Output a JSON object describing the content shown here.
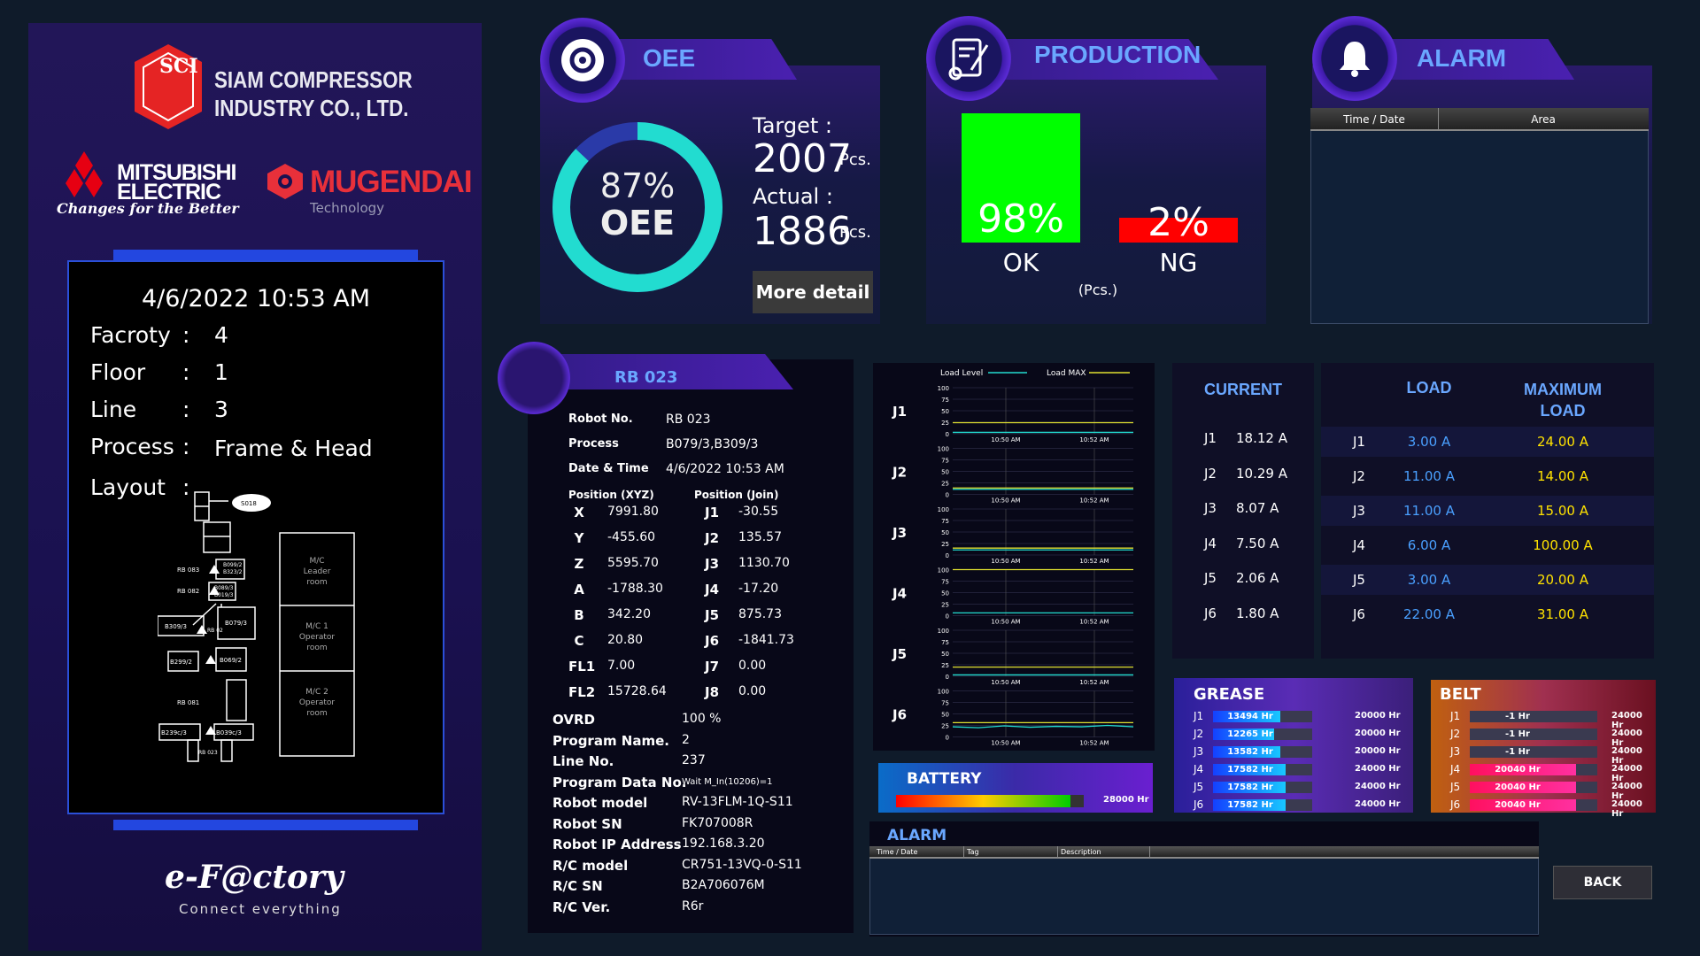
{
  "company": {
    "line1": "SIAM COMPRESSOR",
    "line2": "INDUSTRY CO., LTD.",
    "sci": "SCI",
    "mitsubishi1": "MITSUBISHI",
    "mitsubishi2": "ELECTRIC",
    "tagline": "Changes for the Better",
    "mugendai": "MUGENDAI",
    "mugendai_sub": "Technology",
    "efactory": "e-F@ctory",
    "connect": "Connect everything"
  },
  "info": {
    "datetime": "4/6/2022 10:53 AM",
    "rows": [
      {
        "label": "Facroty",
        "value": "4"
      },
      {
        "label": "Floor",
        "value": "1"
      },
      {
        "label": "Line",
        "value": "3"
      },
      {
        "label": "Process",
        "value": "Frame & Head"
      },
      {
        "label": "Layout",
        "value": ""
      }
    ],
    "colon": ":",
    "layout_labels": {
      "s018": "S018",
      "rb083": "RB 083",
      "rb082": "RB 082",
      "rb081": "RB 081",
      "b309": "B309/3",
      "b079": "B079/3",
      "b299": "B299/2",
      "b069": "B069/2",
      "b239": "B239c/3",
      "b039": "B039c/3",
      "b099": "B099/2",
      "b323": "B323/2",
      "b089": "B089/3",
      "b019": "B019/3",
      "rb02": "RB 02",
      "rb023": "RB 023",
      "mc1": "M/C",
      "mc1b": "Leader",
      "mc1c": "room",
      "mc2": "M/C 1",
      "mc2b": "Operator",
      "mc2c": "room",
      "mc3": "M/C 2",
      "mc3b": "Operator",
      "mc3c": "room"
    }
  },
  "oee": {
    "title": "OEE",
    "percent": "87%",
    "label": "OEE",
    "value": 0.87,
    "target_label": "Target :",
    "target": "2007",
    "actual_label": "Actual :",
    "actual": "1886",
    "unit": "Pcs.",
    "button": "More detail"
  },
  "production": {
    "title": "PRODUCTION",
    "ok_pct": "98%",
    "ok": "OK",
    "ng_pct": "2%",
    "ng": "NG",
    "unit": "(Pcs.)",
    "ok_value": 0.98,
    "ng_value": 0.02
  },
  "alarm_top": {
    "title": "ALARM",
    "cols": [
      "Time / Date",
      "Area"
    ]
  },
  "robot": {
    "title": "RB 023",
    "fields": [
      {
        "k": "Robot No.",
        "v": "RB 023"
      },
      {
        "k": "Process",
        "v": "B079/3,B309/3"
      },
      {
        "k": "Date & Time",
        "v": "4/6/2022 10:53 AM"
      }
    ],
    "pos_xyz_label": "Position (XYZ)",
    "pos_join_label": "Position (Join)",
    "xyz": [
      {
        "k": "X",
        "v": "7991.80"
      },
      {
        "k": "Y",
        "v": "-455.60"
      },
      {
        "k": "Z",
        "v": "5595.70"
      },
      {
        "k": "A",
        "v": "-1788.30"
      },
      {
        "k": "B",
        "v": "342.20"
      },
      {
        "k": "C",
        "v": "20.80"
      },
      {
        "k": "FL1",
        "v": "7.00"
      },
      {
        "k": "FL2",
        "v": "15728.64"
      }
    ],
    "join": [
      {
        "k": "J1",
        "v": "-30.55"
      },
      {
        "k": "J2",
        "v": "135.57"
      },
      {
        "k": "J3",
        "v": "1130.70"
      },
      {
        "k": "J4",
        "v": "-17.20"
      },
      {
        "k": "J5",
        "v": "875.73"
      },
      {
        "k": "J6",
        "v": "-1841.73"
      },
      {
        "k": "J7",
        "v": "0.00"
      },
      {
        "k": "J8",
        "v": "0.00"
      }
    ],
    "details": [
      {
        "k": "OVRD",
        "v": "100 %"
      },
      {
        "k": "Program Name.",
        "v": "2"
      },
      {
        "k": "Line No.",
        "v": "237"
      },
      {
        "k": "Program Data No.",
        "v": "Wait M_In(10206)=1"
      },
      {
        "k": "Robot model",
        "v": "RV-13FLM-1Q-S11"
      },
      {
        "k": "Robot SN",
        "v": "FK707008R"
      },
      {
        "k": "Robot IP Address",
        "v": "192.168.3.20"
      },
      {
        "k": "R/C model",
        "v": "CR751-13VQ-0-S11"
      },
      {
        "k": "R/C SN",
        "v": "B2A706076M"
      },
      {
        "k": "R/C Ver.",
        "v": "R6r"
      }
    ]
  },
  "chart_data": {
    "type": "line",
    "legend": [
      "Load Level",
      "Load MAX"
    ],
    "joints": [
      "J1",
      "J2",
      "J3",
      "J4",
      "J5",
      "J6"
    ],
    "ylim": [
      0,
      100
    ],
    "yticks": [
      "100",
      "75",
      "50",
      "25",
      "0"
    ],
    "xticks": [
      "10:50 AM",
      "10:52 AM"
    ],
    "series": [
      {
        "joint": "J1",
        "load": [
          3,
          3,
          3,
          3,
          3,
          3,
          3,
          3
        ],
        "max": [
          24,
          24,
          24,
          24,
          24,
          24,
          24,
          24
        ]
      },
      {
        "joint": "J2",
        "load": [
          11,
          11,
          11,
          11,
          11,
          11,
          11,
          11
        ],
        "max": [
          14,
          14,
          14,
          14,
          14,
          14,
          14,
          14
        ]
      },
      {
        "joint": "J3",
        "load": [
          11,
          11,
          11,
          11,
          11,
          11,
          11,
          11
        ],
        "max": [
          15,
          15,
          15,
          15,
          15,
          15,
          15,
          15
        ]
      },
      {
        "joint": "J4",
        "load": [
          6,
          6,
          6,
          6,
          6,
          6,
          6,
          6
        ],
        "max": [
          100,
          100,
          100,
          100,
          100,
          100,
          100,
          100
        ]
      },
      {
        "joint": "J5",
        "load": [
          3,
          3,
          3,
          3,
          3,
          3,
          3,
          3
        ],
        "max": [
          20,
          20,
          20,
          20,
          20,
          20,
          20,
          20
        ]
      },
      {
        "joint": "J6",
        "load": [
          22,
          20,
          24,
          21,
          23,
          22,
          25,
          22
        ],
        "max": [
          31,
          31,
          31,
          31,
          31,
          31,
          31,
          31
        ]
      }
    ]
  },
  "current": {
    "title": "CURRENT",
    "rows": [
      {
        "j": "J1",
        "v": "18.12 A"
      },
      {
        "j": "J2",
        "v": "10.29 A"
      },
      {
        "j": "J3",
        "v": "8.07 A"
      },
      {
        "j": "J4",
        "v": "7.50 A"
      },
      {
        "j": "J5",
        "v": "2.06 A"
      },
      {
        "j": "J6",
        "v": "1.80 A"
      }
    ]
  },
  "load": {
    "title": "LOAD",
    "max_title1": "MAXIMUM",
    "max_title2": "LOAD",
    "rows": [
      {
        "j": "J1",
        "v": "3.00 A",
        "m": "24.00 A"
      },
      {
        "j": "J2",
        "v": "11.00 A",
        "m": "14.00 A"
      },
      {
        "j": "J3",
        "v": "11.00 A",
        "m": "15.00 A"
      },
      {
        "j": "J4",
        "v": "6.00 A",
        "m": "100.00 A"
      },
      {
        "j": "J5",
        "v": "3.00 A",
        "m": "20.00 A"
      },
      {
        "j": "J6",
        "v": "22.00 A",
        "m": "31.00 A"
      }
    ]
  },
  "grease": {
    "title": "GREASE",
    "rows": [
      {
        "j": "J1",
        "v": "13494 Hr",
        "m": "20000 Hr",
        "f": 0.675
      },
      {
        "j": "J2",
        "v": "12265 Hr",
        "m": "20000 Hr",
        "f": 0.613
      },
      {
        "j": "J3",
        "v": "13582 Hr",
        "m": "20000 Hr",
        "f": 0.679
      },
      {
        "j": "J4",
        "v": "17582 Hr",
        "m": "24000 Hr",
        "f": 0.733
      },
      {
        "j": "J5",
        "v": "17582 Hr",
        "m": "24000 Hr",
        "f": 0.733
      },
      {
        "j": "J6",
        "v": "17582 Hr",
        "m": "24000 Hr",
        "f": 0.733
      }
    ]
  },
  "belt": {
    "title": "BELT",
    "rows": [
      {
        "j": "J1",
        "v": "-1 Hr",
        "m": "24000 Hr",
        "f": 0
      },
      {
        "j": "J2",
        "v": "-1 Hr",
        "m": "24000 Hr",
        "f": 0
      },
      {
        "j": "J3",
        "v": "-1 Hr",
        "m": "24000 Hr",
        "f": 0
      },
      {
        "j": "J4",
        "v": "20040 Hr",
        "m": "24000 Hr",
        "f": 0.835
      },
      {
        "j": "J5",
        "v": "20040 Hr",
        "m": "24000 Hr",
        "f": 0.835
      },
      {
        "j": "J6",
        "v": "20040 Hr",
        "m": "24000 Hr",
        "f": 0.835
      }
    ]
  },
  "battery": {
    "title": "BATTERY",
    "max": "28000 Hr",
    "level": 0.93
  },
  "alarm_bottom": {
    "title": "ALARM",
    "cols": [
      "Time / Date",
      "Tag",
      "Description"
    ]
  },
  "back": "BACK"
}
